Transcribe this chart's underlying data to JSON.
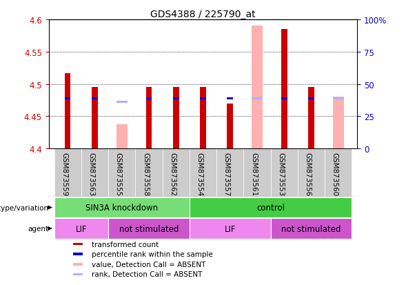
{
  "title": "GDS4388 / 225790_at",
  "samples": [
    "GSM873559",
    "GSM873563",
    "GSM873555",
    "GSM873558",
    "GSM873562",
    "GSM873554",
    "GSM873557",
    "GSM873561",
    "GSM873553",
    "GSM873556",
    "GSM873560"
  ],
  "red_values": [
    4.517,
    4.495,
    null,
    4.495,
    4.495,
    4.495,
    4.47,
    null,
    4.585,
    4.495,
    null
  ],
  "pink_values": [
    null,
    null,
    4.438,
    null,
    null,
    null,
    null,
    4.59,
    null,
    null,
    4.48
  ],
  "blue_values": [
    4.478,
    4.478,
    null,
    4.478,
    4.478,
    4.478,
    4.478,
    null,
    4.478,
    4.478,
    null
  ],
  "lblue_values": [
    null,
    null,
    4.472,
    null,
    null,
    null,
    null,
    4.478,
    null,
    null,
    4.478
  ],
  "y_min": 4.4,
  "y_max": 4.6,
  "y_ticks": [
    4.4,
    4.45,
    4.5,
    4.55,
    4.6
  ],
  "y_ticks_right": [
    0,
    25,
    50,
    75,
    100
  ],
  "y_right_labels": [
    "0",
    "25",
    "50",
    "75",
    "100%"
  ],
  "red_color": "#cc0000",
  "pink_color": "#ffb0b0",
  "blue_color": "#0000cc",
  "lblue_color": "#b0b0ff",
  "xtick_bg": "#cccccc",
  "genotype_groups": [
    {
      "label": "SIN3A knockdown",
      "start": 0,
      "end": 4,
      "color": "#77dd77"
    },
    {
      "label": "control",
      "start": 5,
      "end": 10,
      "color": "#44cc44"
    }
  ],
  "agent_groups": [
    {
      "label": "LIF",
      "start": 0,
      "end": 1,
      "color": "#ee88ee"
    },
    {
      "label": "not stimulated",
      "start": 2,
      "end": 4,
      "color": "#cc55cc"
    },
    {
      "label": "LIF",
      "start": 5,
      "end": 7,
      "color": "#ee88ee"
    },
    {
      "label": "not stimulated",
      "start": 8,
      "end": 10,
      "color": "#cc55cc"
    }
  ],
  "legend_items": [
    {
      "label": "transformed count",
      "color": "#cc0000"
    },
    {
      "label": "percentile rank within the sample",
      "color": "#0000cc"
    },
    {
      "label": "value, Detection Call = ABSENT",
      "color": "#ffb0b0"
    },
    {
      "label": "rank, Detection Call = ABSENT",
      "color": "#b0b0ff"
    }
  ],
  "ylabel_color": "#cc0000",
  "ylabel_right_color": "#0000cc"
}
